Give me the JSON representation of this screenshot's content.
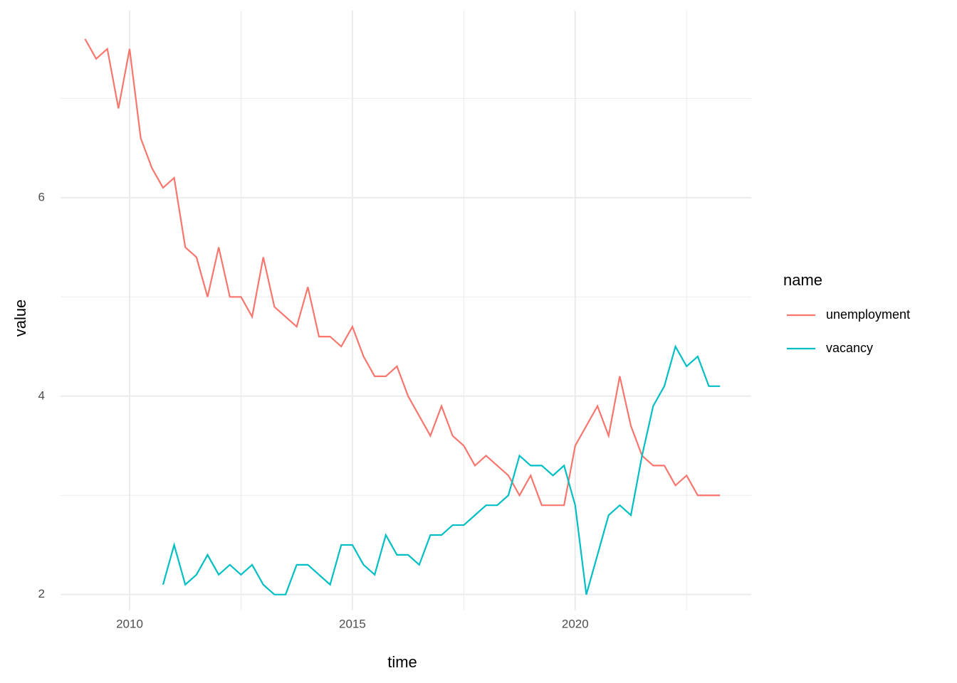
{
  "chart_data": {
    "type": "line",
    "x_label": "time",
    "y_label": "value",
    "x": [
      2009,
      2009.25,
      2009.5,
      2009.75,
      2010,
      2010.25,
      2010.5,
      2010.75,
      2011,
      2011.25,
      2011.5,
      2011.75,
      2012,
      2012.25,
      2012.5,
      2012.75,
      2013,
      2013.25,
      2013.5,
      2013.75,
      2014,
      2014.25,
      2014.5,
      2014.75,
      2015,
      2015.25,
      2015.5,
      2015.75,
      2016,
      2016.25,
      2016.5,
      2016.75,
      2017,
      2017.25,
      2017.5,
      2017.75,
      2018,
      2018.25,
      2018.5,
      2018.75,
      2019,
      2019.25,
      2019.5,
      2019.75,
      2020,
      2020.25,
      2020.5,
      2020.75,
      2021,
      2021.25,
      2021.5,
      2021.75,
      2022,
      2022.25,
      2022.5,
      2022.75,
      2023,
      2023.25
    ],
    "series": [
      {
        "name": "unemployment",
        "color": "#f8766d",
        "values": [
          7.6,
          7.4,
          7.5,
          6.9,
          7.5,
          6.6,
          6.3,
          6.1,
          6.2,
          5.5,
          5.4,
          5.0,
          5.5,
          5.0,
          5.0,
          4.8,
          5.4,
          4.9,
          4.8,
          4.7,
          5.1,
          4.6,
          4.6,
          4.5,
          4.7,
          4.4,
          4.2,
          4.2,
          4.3,
          4.0,
          3.8,
          3.6,
          3.9,
          3.6,
          3.5,
          3.3,
          3.4,
          3.3,
          3.2,
          3.0,
          3.2,
          2.9,
          2.9,
          2.9,
          3.5,
          3.7,
          3.9,
          3.6,
          4.2,
          3.7,
          3.4,
          3.3,
          3.3,
          3.1,
          3.2,
          3.0,
          3.0,
          3.0
        ]
      },
      {
        "name": "vacancy",
        "color": "#00bfc4",
        "values": [
          null,
          null,
          null,
          null,
          null,
          null,
          null,
          2.1,
          2.5,
          2.1,
          2.2,
          2.4,
          2.2,
          2.3,
          2.2,
          2.3,
          2.1,
          2.0,
          2.0,
          2.3,
          2.3,
          2.2,
          2.1,
          2.5,
          2.5,
          2.3,
          2.2,
          2.6,
          2.4,
          2.4,
          2.3,
          2.6,
          2.6,
          2.7,
          2.7,
          2.8,
          2.9,
          2.9,
          3.0,
          3.4,
          3.3,
          3.3,
          3.2,
          3.3,
          2.9,
          2.0,
          2.4,
          2.8,
          2.9,
          2.8,
          3.4,
          3.9,
          4.1,
          4.5,
          4.3,
          4.4,
          4.1,
          4.1
        ]
      }
    ],
    "legend_title": "name",
    "legend": "right",
    "xlim": [
      2008.45,
      2023.95
    ],
    "ylim": [
      1.84,
      7.885
    ],
    "xticks": [
      2010,
      2015,
      2020
    ],
    "yticks": [
      2,
      4,
      6
    ],
    "x_minor_ticks": [
      2012.5,
      2017.5,
      2022.5
    ],
    "y_minor_ticks": [
      3,
      5,
      7
    ],
    "grid": true
  }
}
